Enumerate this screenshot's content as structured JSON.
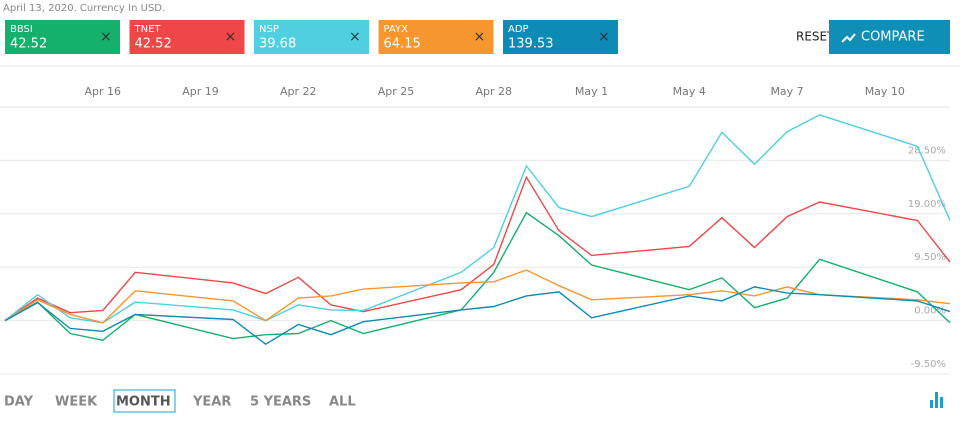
{
  "header": {
    "note": "April 13, 2020. Currency In USD.",
    "reset": "RESET",
    "compare": "COMPARE"
  },
  "ranges": [
    "DAY",
    "WEEK",
    "MONTH",
    "YEAR",
    "5 YEARS",
    "ALL"
  ],
  "chart_data": {
    "type": "line",
    "x": [
      0,
      1,
      2,
      3,
      4,
      7,
      8,
      9,
      10,
      11,
      14,
      15,
      16,
      17,
      18,
      21,
      22,
      23,
      24,
      25,
      28,
      29
    ],
    "xlim": [
      0,
      29
    ],
    "xticks": [
      {
        "value": 3,
        "label": "Apr 16"
      },
      {
        "value": 6,
        "label": "Apr 19"
      },
      {
        "value": 9,
        "label": "Apr 22"
      },
      {
        "value": 12,
        "label": "Apr 25"
      },
      {
        "value": 15,
        "label": "Apr 28"
      },
      {
        "value": 18,
        "label": "May 1"
      },
      {
        "value": 21,
        "label": "May 4"
      },
      {
        "value": 24,
        "label": "May 7"
      },
      {
        "value": 27,
        "label": "May 10"
      }
    ],
    "ylim": [
      -9.5,
      38
    ],
    "yticks": [
      {
        "value": -9.5,
        "label": "-9.50%"
      },
      {
        "value": 0,
        "label": "0.00%"
      },
      {
        "value": 9.5,
        "label": "9.50%"
      },
      {
        "value": 19,
        "label": "19.00%"
      },
      {
        "value": 28.5,
        "label": "28.50%"
      }
    ],
    "grid": true,
    "series": [
      {
        "name": "BBSI",
        "price": 42.52,
        "color": "#13b16b",
        "values": [
          0,
          3.3,
          -2.3,
          -3.5,
          1.1,
          -3.2,
          -2.5,
          -2.3,
          0,
          -2.3,
          1.9,
          8.6,
          19.2,
          15.1,
          9.9,
          5.5,
          7.6,
          2.3,
          4.0,
          10.9,
          5.1,
          -0.4
        ]
      },
      {
        "name": "TNET",
        "price": 42.52,
        "color": "#ef4747",
        "values": [
          0,
          4.0,
          1.4,
          1.8,
          8.6,
          6.7,
          4.8,
          7.7,
          2.8,
          1.6,
          5.5,
          10.0,
          25.5,
          16.0,
          11.6,
          13.2,
          18.3,
          13.0,
          18.5,
          21.1,
          17.8,
          10.4
        ]
      },
      {
        "name": "NSP",
        "price": 39.68,
        "color": "#4fcfe0",
        "values": [
          0,
          4.6,
          0.5,
          -0.4,
          3.3,
          1.9,
          0,
          2.8,
          1.9,
          1.8,
          8.6,
          13.0,
          27.5,
          20.1,
          18.5,
          23.9,
          33.5,
          27.8,
          33.6,
          36.6,
          31.0,
          17.8
        ]
      },
      {
        "name": "PAYX",
        "price": 64.15,
        "color": "#f7962f",
        "values": [
          0,
          3.7,
          1.1,
          -0.4,
          5.3,
          3.5,
          0,
          4.0,
          4.4,
          5.6,
          6.7,
          6.9,
          9.0,
          6.2,
          3.7,
          4.6,
          5.3,
          4.4,
          6.0,
          4.6,
          3.7,
          3.0
        ]
      },
      {
        "name": "ADP",
        "price": 139.53,
        "color": "#0d8bb5",
        "values": [
          0,
          3.2,
          -1.4,
          -1.9,
          1.1,
          0.2,
          -4.2,
          -0.7,
          -2.5,
          -0.2,
          1.9,
          2.5,
          4.4,
          5.1,
          0.5,
          4.4,
          3.5,
          6.0,
          4.9,
          4.6,
          3.5,
          1.6
        ]
      }
    ]
  }
}
